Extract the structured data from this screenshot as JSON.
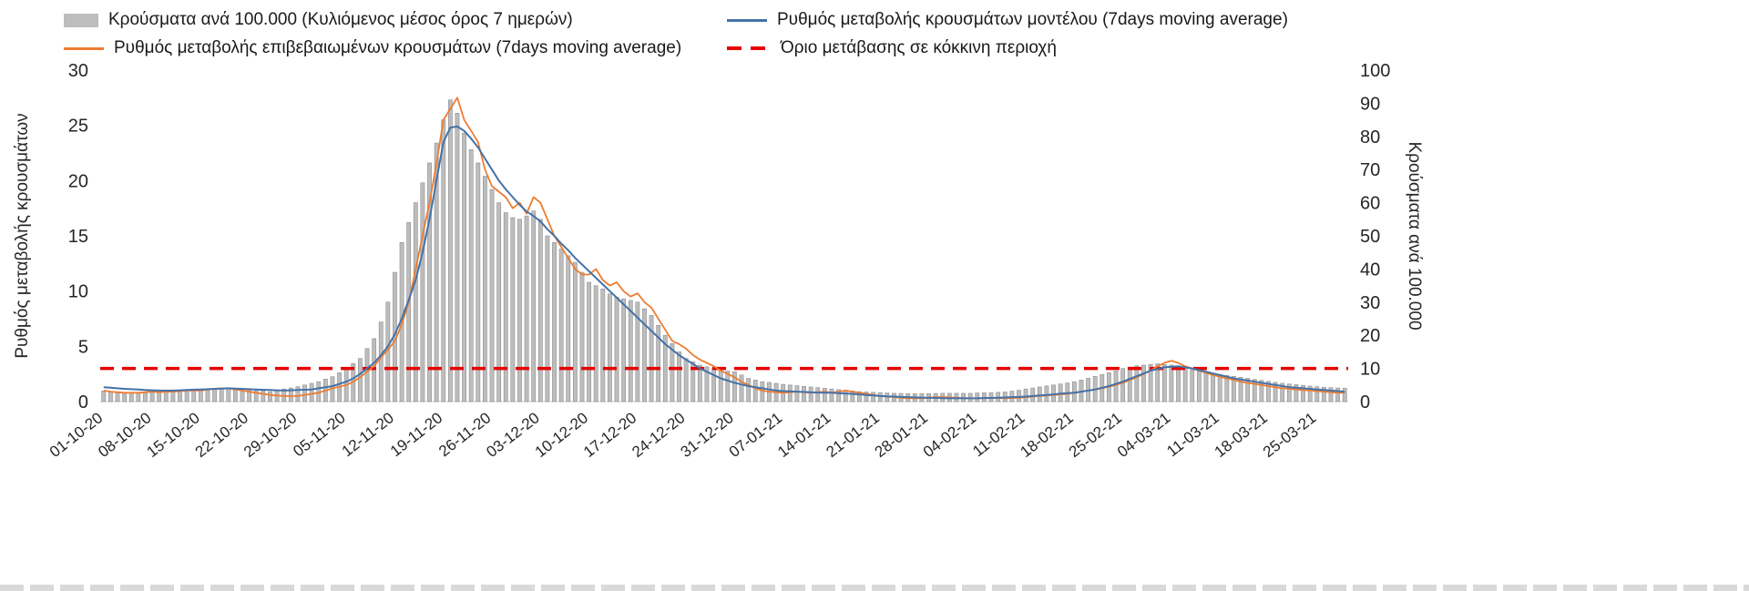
{
  "chart_data": {
    "type": "bar+line",
    "title": "",
    "grid": false,
    "legend_position": "top",
    "x_days_per_tick": 7,
    "x_tick_labels": [
      "01-10-20",
      "08-10-20",
      "15-10-20",
      "22-10-20",
      "29-10-20",
      "05-11-20",
      "12-11-20",
      "19-11-20",
      "26-11-20",
      "03-12-20",
      "10-12-20",
      "17-12-20",
      "24-12-20",
      "31-12-20",
      "07-01-21",
      "14-01-21",
      "21-01-21",
      "28-01-21",
      "04-02-21",
      "11-02-21",
      "18-02-21",
      "25-02-21",
      "04-03-21",
      "11-03-21",
      "18-03-21",
      "25-03-21"
    ],
    "left_axis": {
      "label": "Ρυθμός μεταβολής κρουσμάτων",
      "min": 0,
      "max": 30,
      "ticks": [
        0,
        5,
        10,
        15,
        20,
        25,
        30
      ]
    },
    "right_axis": {
      "label": "Κρούσματα ανά 100.000",
      "min": 0,
      "max": 100,
      "ticks": [
        0,
        10,
        20,
        30,
        40,
        50,
        60,
        70,
        80,
        90,
        100
      ]
    },
    "series": [
      {
        "name": "Κρούσματα ανά 100.000 (Κυλιόμενος μέσος όρος 7 ημερών)",
        "type": "bar",
        "axis": "right",
        "color": "#bdbdbd",
        "stroke": "#8f8f8f",
        "values": [
          3.2,
          3.0,
          2.8,
          2.6,
          2.7,
          2.7,
          2.8,
          2.8,
          2.9,
          3.1,
          3.2,
          3.4,
          3.5,
          3.7,
          3.8,
          3.9,
          3.9,
          4.0,
          3.9,
          3.8,
          3.6,
          3.5,
          3.3,
          3.2,
          3.0,
          3.4,
          3.8,
          4.1,
          4.5,
          5.0,
          5.5,
          6.0,
          6.8,
          7.5,
          8.7,
          10.0,
          11.5,
          13.0,
          16.0,
          19.0,
          24.0,
          30.0,
          39.0,
          48.0,
          54.0,
          60.0,
          66.0,
          72.0,
          78.0,
          85.0,
          91.0,
          87.0,
          81.0,
          76.0,
          72.0,
          68.0,
          64.0,
          60.0,
          57.0,
          55.5,
          55.0,
          56.0,
          57.5,
          55.0,
          50.0,
          48.0,
          46.0,
          44.0,
          42.0,
          39.0,
          36.0,
          35.0,
          34.0,
          32.5,
          31.5,
          31.0,
          30.5,
          30.0,
          28.0,
          26.0,
          23.0,
          20.0,
          17.5,
          15.0,
          13.0,
          12.0,
          11.0,
          10.5,
          10.0,
          9.5,
          9.2,
          9.0,
          8.0,
          7.0,
          6.5,
          6.0,
          5.8,
          5.5,
          5.2,
          5.0,
          4.8,
          4.6,
          4.4,
          4.2,
          4.0,
          3.8,
          3.6,
          3.4,
          3.2,
          3.0,
          2.9,
          2.8,
          2.7,
          2.6,
          2.5,
          2.45,
          2.4,
          2.4,
          2.4,
          2.4,
          2.45,
          2.5,
          2.5,
          2.5,
          2.5,
          2.5,
          2.6,
          2.65,
          2.7,
          2.8,
          2.9,
          3.15,
          3.4,
          3.8,
          4.1,
          4.4,
          4.7,
          5.0,
          5.3,
          5.6,
          6.0,
          6.5,
          7.0,
          7.6,
          8.2,
          8.7,
          9.2,
          10.0,
          10.4,
          10.8,
          11.0,
          11.2,
          11.4,
          11.2,
          11.0,
          10.5,
          10.0,
          9.6,
          9.2,
          8.8,
          8.5,
          8.2,
          7.9,
          7.6,
          7.3,
          7.0,
          6.7,
          6.4,
          6.1,
          5.8,
          5.5,
          5.3,
          5.1,
          4.9,
          4.7,
          4.5,
          4.3,
          4.2,
          4.1,
          4.0
        ]
      },
      {
        "name": "Ρυθμός μεταβολής κρουσμάτων μοντέλου (7days moving average)",
        "type": "line",
        "axis": "left",
        "color": "#4472a8",
        "values": [
          1.3,
          1.25,
          1.2,
          1.15,
          1.12,
          1.1,
          1.05,
          1.02,
          1.0,
          1.0,
          1.0,
          1.02,
          1.05,
          1.08,
          1.1,
          1.12,
          1.15,
          1.18,
          1.2,
          1.18,
          1.15,
          1.12,
          1.1,
          1.07,
          1.05,
          1.02,
          1.0,
          1.02,
          1.05,
          1.07,
          1.1,
          1.2,
          1.3,
          1.4,
          1.6,
          1.8,
          2.1,
          2.5,
          3.0,
          3.5,
          4.2,
          5.0,
          6.1,
          7.5,
          9.2,
          11.0,
          13.5,
          16.5,
          20.0,
          23.5,
          24.8,
          24.9,
          24.5,
          23.8,
          23.0,
          22.0,
          21.0,
          20.0,
          19.2,
          18.5,
          17.8,
          17.2,
          16.8,
          16.3,
          15.6,
          15.0,
          14.3,
          13.7,
          13.0,
          12.4,
          11.8,
          11.2,
          10.6,
          10.0,
          9.4,
          8.8,
          8.2,
          7.6,
          7.0,
          6.4,
          5.8,
          5.2,
          4.7,
          4.2,
          3.8,
          3.4,
          3.0,
          2.7,
          2.4,
          2.1,
          1.9,
          1.7,
          1.55,
          1.4,
          1.3,
          1.2,
          1.1,
          1.0,
          0.95,
          0.92,
          0.9,
          0.87,
          0.85,
          0.82,
          0.8,
          0.8,
          0.77,
          0.73,
          0.7,
          0.65,
          0.6,
          0.55,
          0.5,
          0.47,
          0.45,
          0.42,
          0.4,
          0.38,
          0.36,
          0.35,
          0.33,
          0.31,
          0.3,
          0.3,
          0.3,
          0.3,
          0.3,
          0.32,
          0.33,
          0.35,
          0.37,
          0.4,
          0.42,
          0.45,
          0.5,
          0.55,
          0.6,
          0.65,
          0.72,
          0.76,
          0.8,
          0.9,
          1.0,
          1.1,
          1.25,
          1.4,
          1.6,
          1.8,
          2.05,
          2.3,
          2.55,
          2.8,
          2.95,
          3.1,
          3.15,
          3.2,
          3.1,
          3.0,
          2.85,
          2.7,
          2.55,
          2.4,
          2.25,
          2.1,
          2.0,
          1.9,
          1.8,
          1.7,
          1.6,
          1.5,
          1.4,
          1.3,
          1.25,
          1.2,
          1.15,
          1.1,
          1.05,
          1.0,
          0.95,
          0.9
        ]
      },
      {
        "name": "Ρυθμός μεταβολής επιβεβαιωμένων κρουσμάτων (7days moving average)",
        "type": "line",
        "axis": "left",
        "color": "#ed7d31",
        "values": [
          1.0,
          0.9,
          0.85,
          0.8,
          0.8,
          0.8,
          0.85,
          0.9,
          0.85,
          0.9,
          0.9,
          0.95,
          1.0,
          1.0,
          1.0,
          1.1,
          1.15,
          1.2,
          1.2,
          1.1,
          1.0,
          0.9,
          0.8,
          0.7,
          0.6,
          0.55,
          0.5,
          0.5,
          0.5,
          0.6,
          0.7,
          0.8,
          1.0,
          1.2,
          1.35,
          1.5,
          1.8,
          2.2,
          2.7,
          3.2,
          4.0,
          4.7,
          5.5,
          7.0,
          9.0,
          12.0,
          15.0,
          18.0,
          21.5,
          25.5,
          26.5,
          27.5,
          25.5,
          24.5,
          23.5,
          21.0,
          19.5,
          19.0,
          18.5,
          17.5,
          18.0,
          17.0,
          18.5,
          18.0,
          16.5,
          15.0,
          14.0,
          13.0,
          12.0,
          11.5,
          11.5,
          12.0,
          11.0,
          10.5,
          10.8,
          10.0,
          9.5,
          9.8,
          9.0,
          8.5,
          7.5,
          6.5,
          5.5,
          5.2,
          4.8,
          4.2,
          3.8,
          3.5,
          3.2,
          2.8,
          2.5,
          2.2,
          1.8,
          1.5,
          1.2,
          1.0,
          0.9,
          0.85,
          0.8,
          0.85,
          0.9,
          0.85,
          0.8,
          0.85,
          0.9,
          0.8,
          0.9,
          1.0,
          0.9,
          0.8,
          0.7,
          0.6,
          0.5,
          0.45,
          0.4,
          0.35,
          0.3,
          0.3,
          0.3,
          0.35,
          0.4,
          0.4,
          0.38,
          0.35,
          0.32,
          0.3,
          0.3,
          0.32,
          0.35,
          0.32,
          0.3,
          0.32,
          0.35,
          0.4,
          0.45,
          0.5,
          0.55,
          0.6,
          0.65,
          0.7,
          0.8,
          0.9,
          1.0,
          1.1,
          1.2,
          1.35,
          1.5,
          1.7,
          1.95,
          2.2,
          2.5,
          2.8,
          3.2,
          3.5,
          3.7,
          3.5,
          3.2,
          3.0,
          2.8,
          2.6,
          2.4,
          2.25,
          2.1,
          1.95,
          1.8,
          1.7,
          1.6,
          1.5,
          1.4,
          1.3,
          1.2,
          1.15,
          1.1,
          1.05,
          1.0,
          0.95,
          0.9,
          0.85,
          0.8,
          0.8
        ]
      },
      {
        "name": "Όριο μετάβασης σε κόκκινη περιοχή",
        "type": "threshold",
        "axis": "left",
        "color": "#e60000",
        "value": 3
      }
    ]
  }
}
